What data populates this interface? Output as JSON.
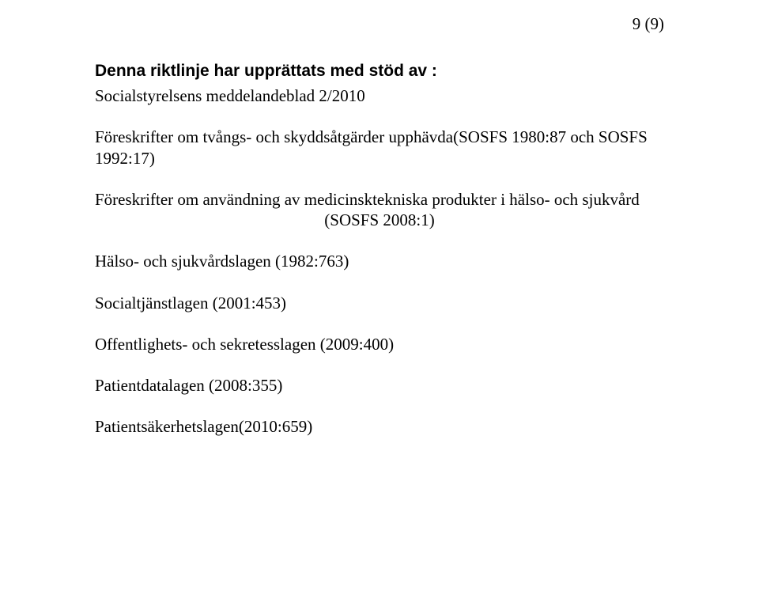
{
  "pageNumber": "9 (9)",
  "heading": "Denna riktlinje har upprättats med stöd av :",
  "lines": {
    "social": "Socialstyrelsens meddelandeblad 2/2010",
    "foreskrift1": "Föreskrifter om tvångs- och skyddsåtgärder upphävda(SOSFS 1980:87 och SOSFS 1992:17)",
    "foreskrift2a": "Föreskrifter om användning av medicinsktekniska produkter i hälso- och sjukvård",
    "foreskrift2b": "(SOSFS 2008:1)",
    "halsolagen": "Hälso- och sjukvårdslagen (1982:763)",
    "socialtjanst": "Socialtjänstlagen (2001:453)",
    "offentlighet": "Offentlighets- och sekretesslagen (2009:400)",
    "patientdata": "Patientdatalagen (2008:355)",
    "patientsakerhet": "Patientsäkerhetslagen(2010:659)"
  }
}
